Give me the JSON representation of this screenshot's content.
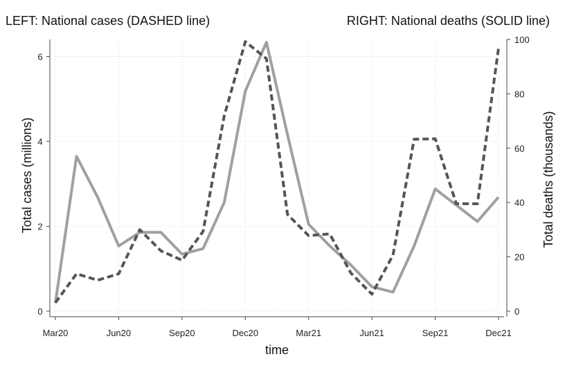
{
  "chart_data": {
    "type": "line",
    "title_left": "LEFT: National cases (DASHED line)",
    "title_right": "RIGHT: National deaths (SOLID line)",
    "xlabel": "time",
    "ylabel_left": "Total cases (millions)",
    "ylabel_right": "Total deaths (thousands)",
    "x": [
      "Mar20",
      "Apr20",
      "May20",
      "Jun20",
      "Jul20",
      "Aug20",
      "Sep20",
      "Oct20",
      "Nov20",
      "Dec20",
      "Jan21",
      "Feb21",
      "Mar21",
      "Apr21",
      "May21",
      "Jun21",
      "Jul21",
      "Aug21",
      "Sep21",
      "Oct21",
      "Nov21",
      "Dec21"
    ],
    "x_ticks": [
      "Mar20",
      "Jun20",
      "Sep20",
      "Dec20",
      "Mar21",
      "Jun21",
      "Sep21",
      "Dec21"
    ],
    "ylim_left": [
      0,
      6.4
    ],
    "yticks_left": [
      0,
      2,
      4,
      6
    ],
    "ylim_right": [
      0,
      100
    ],
    "yticks_right": [
      0,
      20,
      40,
      60,
      80,
      100
    ],
    "grid": true,
    "series": [
      {
        "name": "National cases",
        "axis": "left",
        "style": "dashed",
        "color": "#555555",
        "values": [
          0.2,
          0.88,
          0.73,
          0.88,
          1.92,
          1.42,
          1.2,
          1.88,
          4.6,
          6.35,
          5.95,
          2.28,
          1.78,
          1.82,
          0.9,
          0.4,
          1.32,
          4.05,
          4.06,
          2.53,
          2.53,
          6.2
        ]
      },
      {
        "name": "National deaths",
        "axis": "right",
        "style": "solid",
        "color": "#a0a0a0",
        "values": [
          3,
          57,
          42,
          24,
          29,
          29,
          21,
          23,
          40,
          81,
          99,
          65,
          32,
          24,
          17,
          9,
          7,
          24,
          45,
          39,
          33,
          42
        ]
      }
    ]
  }
}
